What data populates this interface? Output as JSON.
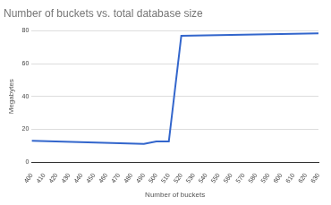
{
  "chart_data": {
    "type": "line",
    "title": "Number of buckets vs. total database size",
    "x_label": "Number of buckets",
    "y_label": "Megabytes",
    "x": [
      400,
      490,
      500,
      510,
      520,
      630
    ],
    "values": [
      13,
      11,
      12.5,
      12.5,
      77,
      78.5
    ],
    "color": "#3366cc",
    "xlim": [
      400,
      630
    ],
    "xticks": [
      400,
      410,
      420,
      430,
      440,
      450,
      460,
      470,
      480,
      490,
      500,
      510,
      520,
      530,
      540,
      550,
      560,
      570,
      580,
      590,
      600,
      610,
      620,
      630
    ],
    "ylim": [
      0,
      80
    ],
    "yticks": [
      0,
      20,
      40,
      60,
      80
    ],
    "grid": true
  }
}
